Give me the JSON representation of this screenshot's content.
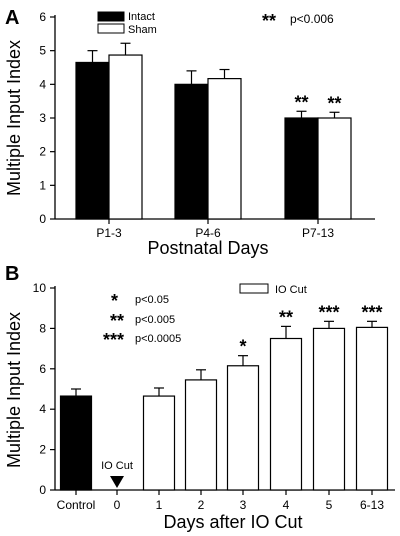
{
  "chart_data": [
    {
      "panel_label": "A",
      "type": "bar",
      "xlabel": "Postnatal Days",
      "ylabel": "Multiple Input Index",
      "ylim": [
        0,
        6
      ],
      "yticks": [
        "0",
        "1",
        "2",
        "3",
        "4",
        "5",
        "6"
      ],
      "categories": [
        "P1-3",
        "P4-6",
        "P7-13"
      ],
      "series": [
        {
          "name": "Intact",
          "fill": "#000000",
          "values": [
            4.65,
            4.0,
            3.0
          ],
          "errors": [
            0.35,
            0.4,
            0.2
          ],
          "sig": [
            "",
            "",
            "**"
          ]
        },
        {
          "name": "Sham",
          "fill": "#ffffff",
          "values": [
            4.87,
            4.17,
            3.0
          ],
          "errors": [
            0.35,
            0.27,
            0.17
          ],
          "sig": [
            "",
            "",
            "**"
          ]
        }
      ],
      "legend_position": "top-left",
      "annotation": {
        "stars": "**",
        "text": "p<0.006"
      }
    },
    {
      "panel_label": "B",
      "type": "bar",
      "xlabel": "Days after IO Cut",
      "ylabel": "Multiple Input Index",
      "ylim": [
        0,
        10
      ],
      "yticks": [
        "0",
        "2",
        "4",
        "6",
        "8",
        "10"
      ],
      "categories": [
        "Control",
        "0",
        "1",
        "2",
        "3",
        "4",
        "5",
        "6-13"
      ],
      "values": [
        4.65,
        null,
        4.65,
        5.45,
        6.15,
        7.5,
        8.0,
        8.05
      ],
      "errors": [
        0.35,
        null,
        0.4,
        0.5,
        0.5,
        0.6,
        0.35,
        0.3
      ],
      "fills": [
        "#000000",
        null,
        "#ffffff",
        "#ffffff",
        "#ffffff",
        "#ffffff",
        "#ffffff",
        "#ffffff"
      ],
      "sig": [
        "",
        "",
        "",
        "",
        "*",
        "**",
        "***",
        "***"
      ],
      "legend": [
        {
          "name": "IO Cut",
          "fill": "#ffffff"
        }
      ],
      "legend_position": "top-right",
      "event_marker": {
        "category": "0",
        "label": "IO Cut"
      },
      "significance_key": [
        {
          "stars": "*",
          "text": "p<0.05"
        },
        {
          "stars": "**",
          "text": "p<0.005"
        },
        {
          "stars": "***",
          "text": "p<0.0005"
        }
      ]
    }
  ]
}
